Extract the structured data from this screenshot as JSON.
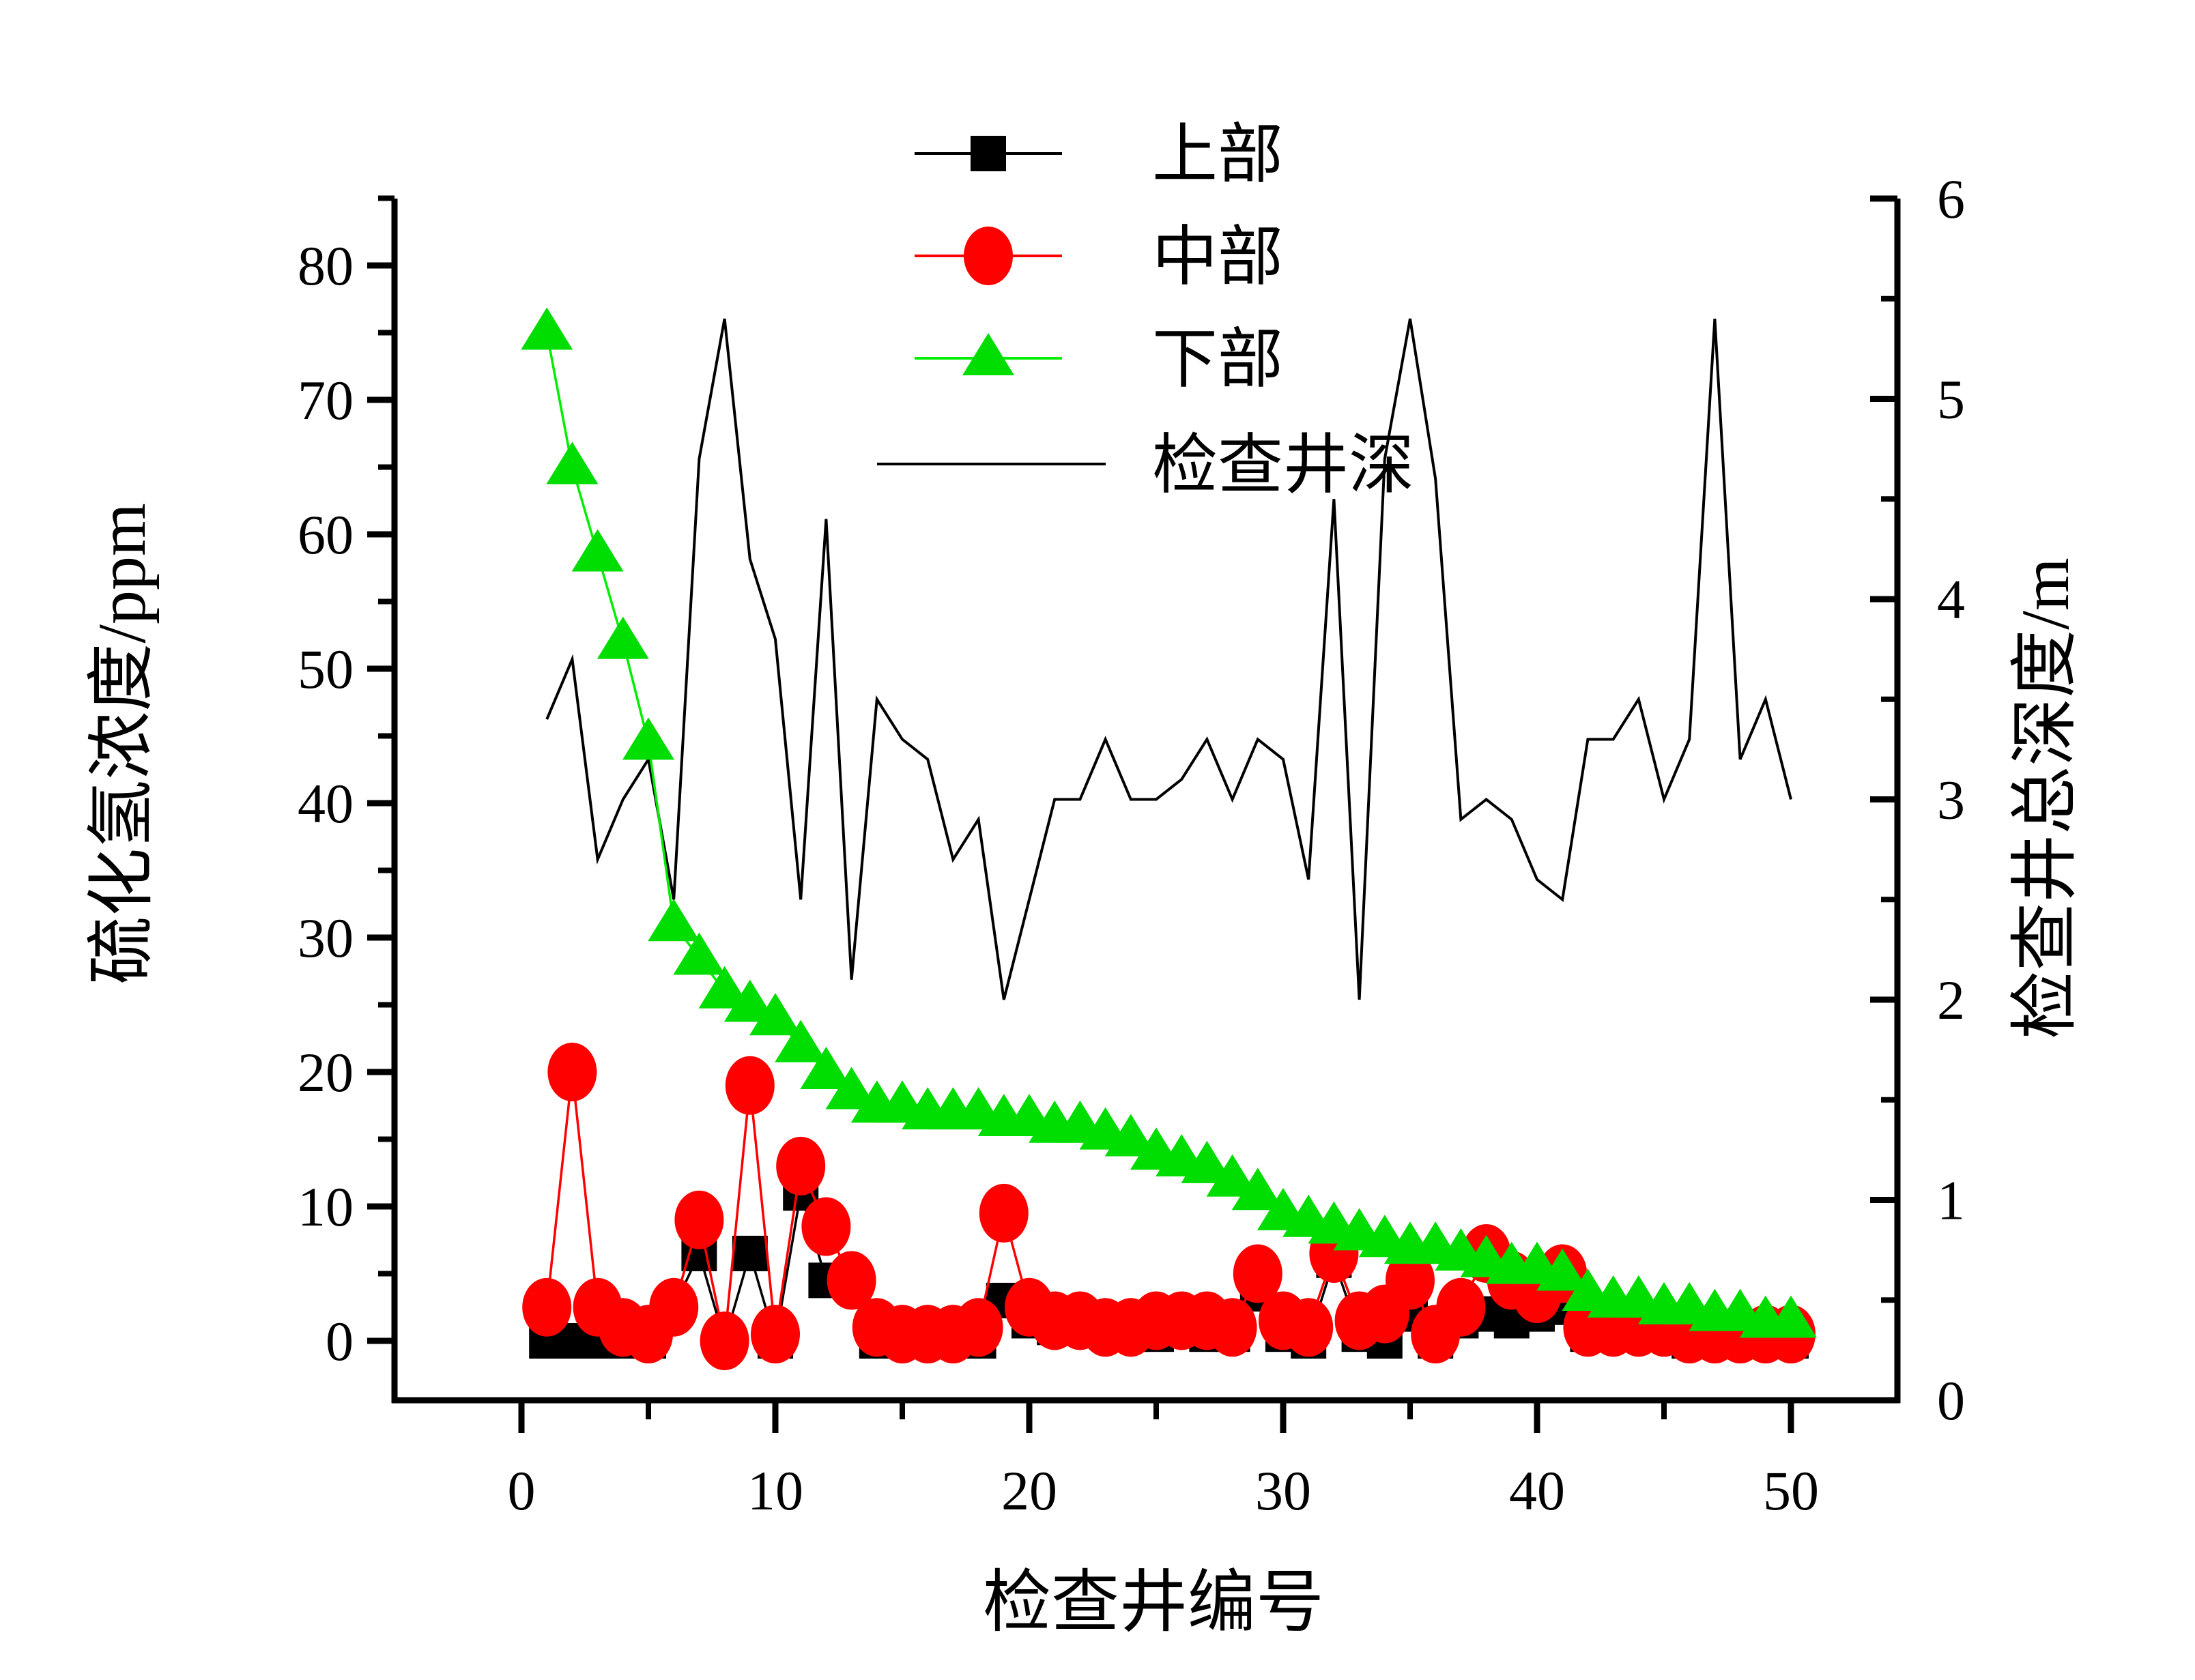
{
  "chart_data": {
    "type": "line",
    "title": "",
    "xlabel": "检查井编号",
    "ylabel_left": "硫化氢浓度/ppm",
    "ylabel_right": "检查井总深度/m",
    "x_ticks": [
      0,
      10,
      20,
      30,
      40,
      50
    ],
    "y_left_ticks": [
      0,
      10,
      20,
      30,
      40,
      50,
      60,
      70,
      80
    ],
    "y_right_ticks": [
      0,
      1,
      2,
      3,
      4,
      5,
      6
    ],
    "x_range": [
      -5,
      54
    ],
    "y_left_range": [
      -4.5,
      85
    ],
    "y_right_range": [
      0,
      6
    ],
    "grid": false,
    "legend_position": "inside-top-center",
    "x": [
      1,
      2,
      3,
      4,
      5,
      6,
      7,
      8,
      9,
      10,
      11,
      12,
      13,
      14,
      15,
      16,
      17,
      18,
      19,
      20,
      21,
      22,
      23,
      24,
      25,
      26,
      27,
      28,
      29,
      30,
      31,
      32,
      33,
      34,
      35,
      36,
      37,
      38,
      39,
      40,
      41,
      42,
      43,
      44,
      45,
      46,
      47,
      48,
      49,
      50
    ],
    "series": [
      {
        "name": "上部",
        "axis": "left",
        "marker": "square",
        "color": "#000000",
        "line_color": "#000000",
        "values": [
          0,
          0,
          0,
          0,
          0,
          2.5,
          6.5,
          0,
          6.5,
          0,
          11,
          4.5,
          4.5,
          0,
          0,
          0,
          0,
          0,
          3,
          1.5,
          1,
          1,
          1,
          0.5,
          0.5,
          1,
          0.5,
          0.5,
          3.5,
          0.5,
          0,
          6,
          0.5,
          0,
          2,
          0,
          1.5,
          2,
          1.5,
          2,
          2.5,
          0.5,
          0.5,
          0.5,
          0.5,
          0,
          0,
          0,
          0,
          0
        ]
      },
      {
        "name": "中部",
        "axis": "left",
        "marker": "circle",
        "color": "#ff0000",
        "line_color": "#ff0000",
        "values": [
          2.5,
          20,
          2.5,
          1,
          0.5,
          2.5,
          9,
          0,
          19,
          0.5,
          13,
          8.5,
          4.5,
          1,
          0.5,
          0.5,
          0.5,
          1,
          9.5,
          2.5,
          1.5,
          1.5,
          1,
          1,
          1.5,
          1.5,
          1.5,
          1,
          5,
          1.5,
          1,
          6.5,
          1.5,
          2,
          4.5,
          0.5,
          2.5,
          6.5,
          4.5,
          3.5,
          5,
          1,
          1,
          1,
          1,
          0.5,
          0.5,
          0.5,
          0.5,
          0.5
        ]
      },
      {
        "name": "下部",
        "axis": "left",
        "marker": "triangle",
        "color": "#00dd00",
        "line_color": "#00ee00",
        "values": [
          75,
          65,
          58.5,
          52,
          44.5,
          31,
          28.5,
          26,
          25,
          24,
          22,
          20,
          18.5,
          17.5,
          17.5,
          17,
          17,
          17,
          16.5,
          16.5,
          16,
          16,
          15.5,
          15,
          14,
          13.5,
          13,
          12,
          11,
          9.5,
          9,
          8.5,
          8,
          7.5,
          7,
          7,
          6.5,
          6,
          5.5,
          5.5,
          5,
          3.5,
          3,
          3,
          2.5,
          2.5,
          2,
          2,
          1.5,
          1.5
        ]
      },
      {
        "name": "检查井深",
        "axis": "right",
        "marker": "none",
        "color": "#000000",
        "line_color": "#000000",
        "values": [
          3.4,
          3.7,
          2.7,
          3.0,
          3.2,
          2.5,
          4.7,
          5.4,
          4.2,
          3.8,
          2.5,
          4.4,
          2.1,
          3.5,
          3.3,
          3.2,
          2.7,
          2.9,
          2.0,
          2.5,
          3.0,
          3.0,
          3.3,
          3.0,
          3.0,
          3.1,
          3.3,
          3.0,
          3.3,
          3.2,
          2.6,
          4.5,
          2.0,
          4.7,
          5.4,
          4.6,
          2.9,
          3.0,
          2.9,
          2.6,
          2.5,
          3.3,
          3.3,
          3.5,
          3.0,
          3.3,
          5.4,
          3.2,
          3.5,
          3.0
        ]
      }
    ]
  }
}
